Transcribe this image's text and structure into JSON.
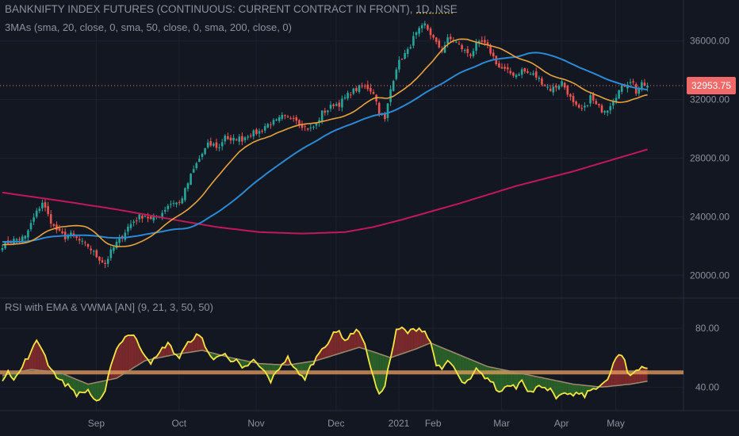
{
  "header": {
    "symbol_line": "BANKNIFTY INDEX FUTURES (CONTINUOUS: CURRENT CONTRACT IN FRONT), 1D, NSE",
    "ma_indicator": "3MAs (sma, 20, close, 0, sma, 50, close, 0, sma, 200, close, 0)",
    "rsi_indicator": "RSI with EMA & VWMA [AN] (9, 21, 3, 50, 50)"
  },
  "colors": {
    "background": "#131722",
    "grid": "#1e2230",
    "text": "#8c909c",
    "up_candle": "#26a69a",
    "down_candle": "#ef5350",
    "sma20": "#e8a33d",
    "sma50": "#2a8ad4",
    "sma200": "#c2185b",
    "rsi_line": "#f5e642",
    "rsi_avg": "#9e8b6e",
    "fill_above": "#8b2d2d",
    "fill_below": "#2f6b2a",
    "midline": "#e8a060",
    "price_tag": "#f06a6a"
  },
  "chart_data": [
    {
      "type": "candlestick",
      "title": "BANKNIFTY INDEX FUTURES (CONTINUOUS: CURRENT CONTRACT IN FRONT), 1D, NSE",
      "ylim": [
        18500,
        38800
      ],
      "y_ticks": [
        "20000.00",
        "24000.00",
        "28000.00",
        "32000.00",
        "36000.00"
      ],
      "x_tick_labels": [
        "Sep",
        "Oct",
        "Nov",
        "Dec",
        "2021",
        "Feb",
        "Mar",
        "Apr",
        "May"
      ],
      "last_price_label": "32953.75",
      "last_price": 32953.75,
      "close_anchors": [
        [
          0,
          22050
        ],
        [
          4,
          22400
        ],
        [
          8,
          22600
        ],
        [
          10,
          23500
        ],
        [
          12,
          24300
        ],
        [
          14,
          25000
        ],
        [
          16,
          24100
        ],
        [
          18,
          23300
        ],
        [
          20,
          22900
        ],
        [
          22,
          22600
        ],
        [
          24,
          22750
        ],
        [
          26,
          22500
        ],
        [
          28,
          22200
        ],
        [
          30,
          22000
        ],
        [
          33,
          21300
        ],
        [
          36,
          20800
        ],
        [
          38,
          21600
        ],
        [
          40,
          22200
        ],
        [
          42,
          22700
        ],
        [
          44,
          23300
        ],
        [
          46,
          23700
        ],
        [
          48,
          24000
        ],
        [
          50,
          24100
        ],
        [
          52,
          23800
        ],
        [
          54,
          24000
        ],
        [
          56,
          24300
        ],
        [
          58,
          24800
        ],
        [
          60,
          25000
        ],
        [
          62,
          24900
        ],
        [
          64,
          25800
        ],
        [
          66,
          26800
        ],
        [
          68,
          27600
        ],
        [
          70,
          28300
        ],
        [
          72,
          28900
        ],
        [
          74,
          28900
        ],
        [
          76,
          28700
        ],
        [
          78,
          29600
        ],
        [
          80,
          29100
        ],
        [
          82,
          29400
        ],
        [
          84,
          29300
        ],
        [
          86,
          29600
        ],
        [
          88,
          29700
        ],
        [
          90,
          29800
        ],
        [
          92,
          30200
        ],
        [
          94,
          30400
        ],
        [
          96,
          30500
        ],
        [
          98,
          30800
        ],
        [
          100,
          30700
        ],
        [
          102,
          30900
        ],
        [
          104,
          30400
        ],
        [
          106,
          30100
        ],
        [
          108,
          30000
        ],
        [
          110,
          30300
        ],
        [
          112,
          31100
        ],
        [
          114,
          31300
        ],
        [
          116,
          31700
        ],
        [
          118,
          31700
        ],
        [
          120,
          32100
        ],
        [
          122,
          32500
        ],
        [
          124,
          32700
        ],
        [
          126,
          32900
        ],
        [
          128,
          32800
        ],
        [
          130,
          32500
        ],
        [
          132,
          31200
        ],
        [
          134,
          30600
        ],
        [
          136,
          32700
        ],
        [
          138,
          34200
        ],
        [
          140,
          34900
        ],
        [
          142,
          35300
        ],
        [
          144,
          36200
        ],
        [
          146,
          36700
        ],
        [
          148,
          37100
        ],
        [
          150,
          36500
        ],
        [
          152,
          35800
        ],
        [
          154,
          35400
        ],
        [
          156,
          36100
        ],
        [
          158,
          36100
        ],
        [
          160,
          35700
        ],
        [
          162,
          35300
        ],
        [
          164,
          35100
        ],
        [
          166,
          35700
        ],
        [
          168,
          35900
        ],
        [
          170,
          35600
        ],
        [
          172,
          34900
        ],
        [
          174,
          34200
        ],
        [
          176,
          34000
        ],
        [
          178,
          33800
        ],
        [
          180,
          33700
        ],
        [
          182,
          34000
        ],
        [
          184,
          33800
        ],
        [
          186,
          33700
        ],
        [
          188,
          33400
        ],
        [
          190,
          33000
        ],
        [
          192,
          32700
        ],
        [
          194,
          32900
        ],
        [
          196,
          33200
        ],
        [
          198,
          32500
        ],
        [
          200,
          31700
        ],
        [
          202,
          31300
        ],
        [
          204,
          31400
        ],
        [
          206,
          32200
        ],
        [
          208,
          31600
        ],
        [
          210,
          31300
        ],
        [
          212,
          31400
        ],
        [
          214,
          32000
        ],
        [
          216,
          32600
        ],
        [
          218,
          33000
        ],
        [
          220,
          33300
        ],
        [
          221,
          33100
        ],
        [
          222,
          32500
        ],
        [
          224,
          33000
        ],
        [
          226,
          32950
        ]
      ],
      "series": [
        {
          "name": "sma 20"
        },
        {
          "name": "sma 50"
        },
        {
          "name": "sma 200",
          "anchors": [
            [
              0,
              25650
            ],
            [
              20,
              25100
            ],
            [
              40,
              24500
            ],
            [
              60,
              23800
            ],
            [
              75,
              23300
            ],
            [
              90,
              22950
            ],
            [
              105,
              22850
            ],
            [
              120,
              22950
            ],
            [
              130,
              23300
            ],
            [
              140,
              23800
            ],
            [
              160,
              24900
            ],
            [
              180,
              26100
            ],
            [
              200,
              27100
            ],
            [
              226,
              28600
            ]
          ]
        }
      ]
    },
    {
      "type": "line",
      "title": "RSI with EMA & VWMA [AN] (9, 21, 3, 50, 50)",
      "ylim": [
        24,
        100
      ],
      "y_ticks": [
        "40.00",
        "80.00"
      ],
      "midline": 50,
      "series": [
        {
          "name": "RSI",
          "anchors": [
            [
              0,
              45
            ],
            [
              2,
              52
            ],
            [
              4,
              45
            ],
            [
              6,
              50
            ],
            [
              8,
              58
            ],
            [
              10,
              63
            ],
            [
              12,
              72
            ],
            [
              14,
              66
            ],
            [
              16,
              56
            ],
            [
              18,
              50
            ],
            [
              20,
              45
            ],
            [
              22,
              42
            ],
            [
              24,
              40
            ],
            [
              26,
              35
            ],
            [
              28,
              36
            ],
            [
              30,
              38
            ],
            [
              32,
              32
            ],
            [
              34,
              30
            ],
            [
              36,
              36
            ],
            [
              38,
              56
            ],
            [
              40,
              66
            ],
            [
              42,
              72
            ],
            [
              44,
              76
            ],
            [
              46,
              75
            ],
            [
              48,
              68
            ],
            [
              50,
              62
            ],
            [
              52,
              57
            ],
            [
              54,
              60
            ],
            [
              56,
              66
            ],
            [
              58,
              70
            ],
            [
              60,
              64
            ],
            [
              62,
              60
            ],
            [
              64,
              67
            ],
            [
              66,
              72
            ],
            [
              68,
              75
            ],
            [
              70,
              73
            ],
            [
              72,
              64
            ],
            [
              74,
              58
            ],
            [
              76,
              62
            ],
            [
              78,
              64
            ],
            [
              80,
              56
            ],
            [
              82,
              58
            ],
            [
              84,
              52
            ],
            [
              86,
              55
            ],
            [
              88,
              58
            ],
            [
              90,
              54
            ],
            [
              92,
              50
            ],
            [
              94,
              44
            ],
            [
              96,
              50
            ],
            [
              98,
              56
            ],
            [
              100,
              60
            ],
            [
              102,
              54
            ],
            [
              104,
              48
            ],
            [
              106,
              46
            ],
            [
              108,
              54
            ],
            [
              110,
              60
            ],
            [
              112,
              67
            ],
            [
              114,
              70
            ],
            [
              116,
              76
            ],
            [
              118,
              78
            ],
            [
              120,
              72
            ],
            [
              122,
              75
            ],
            [
              124,
              80
            ],
            [
              126,
              74
            ],
            [
              128,
              62
            ],
            [
              130,
              46
            ],
            [
              132,
              34
            ],
            [
              134,
              42
            ],
            [
              136,
              60
            ],
            [
              138,
              78
            ],
            [
              140,
              80
            ],
            [
              142,
              77
            ],
            [
              144,
              79
            ],
            [
              146,
              80
            ],
            [
              148,
              78
            ],
            [
              150,
              70
            ],
            [
              152,
              56
            ],
            [
              154,
              51
            ],
            [
              156,
              58
            ],
            [
              158,
              54
            ],
            [
              160,
              46
            ],
            [
              162,
              42
            ],
            [
              164,
              45
            ],
            [
              166,
              52
            ],
            [
              168,
              48
            ],
            [
              170,
              46
            ],
            [
              172,
              42
            ],
            [
              174,
              36
            ],
            [
              176,
              40
            ],
            [
              178,
              42
            ],
            [
              180,
              40
            ],
            [
              182,
              46
            ],
            [
              184,
              38
            ],
            [
              186,
              36
            ],
            [
              188,
              42
            ],
            [
              190,
              40
            ],
            [
              192,
              38
            ],
            [
              194,
              32
            ],
            [
              196,
              34
            ],
            [
              198,
              36
            ],
            [
              200,
              34
            ],
            [
              202,
              36
            ],
            [
              204,
              34
            ],
            [
              206,
              38
            ],
            [
              208,
              40
            ],
            [
              210,
              42
            ],
            [
              212,
              44
            ],
            [
              214,
              56
            ],
            [
              216,
              62
            ],
            [
              218,
              58
            ],
            [
              219,
              50
            ],
            [
              220,
              48
            ],
            [
              222,
              52
            ],
            [
              224,
              54
            ],
            [
              226,
              53
            ]
          ]
        },
        {
          "name": "Average",
          "anchors": [
            [
              0,
              48
            ],
            [
              10,
              52
            ],
            [
              20,
              50
            ],
            [
              30,
              42
            ],
            [
              40,
              46
            ],
            [
              50,
              58
            ],
            [
              60,
              62
            ],
            [
              70,
              65
            ],
            [
              80,
              60
            ],
            [
              90,
              56
            ],
            [
              100,
              55
            ],
            [
              110,
              58
            ],
            [
              120,
              64
            ],
            [
              125,
              67
            ],
            [
              130,
              64
            ],
            [
              136,
              60
            ],
            [
              145,
              66
            ],
            [
              150,
              70
            ],
            [
              160,
              62
            ],
            [
              170,
              54
            ],
            [
              180,
              50
            ],
            [
              190,
              46
            ],
            [
              200,
              42
            ],
            [
              210,
              40
            ],
            [
              215,
              41
            ],
            [
              220,
              42
            ],
            [
              226,
              44
            ]
          ]
        }
      ]
    }
  ]
}
